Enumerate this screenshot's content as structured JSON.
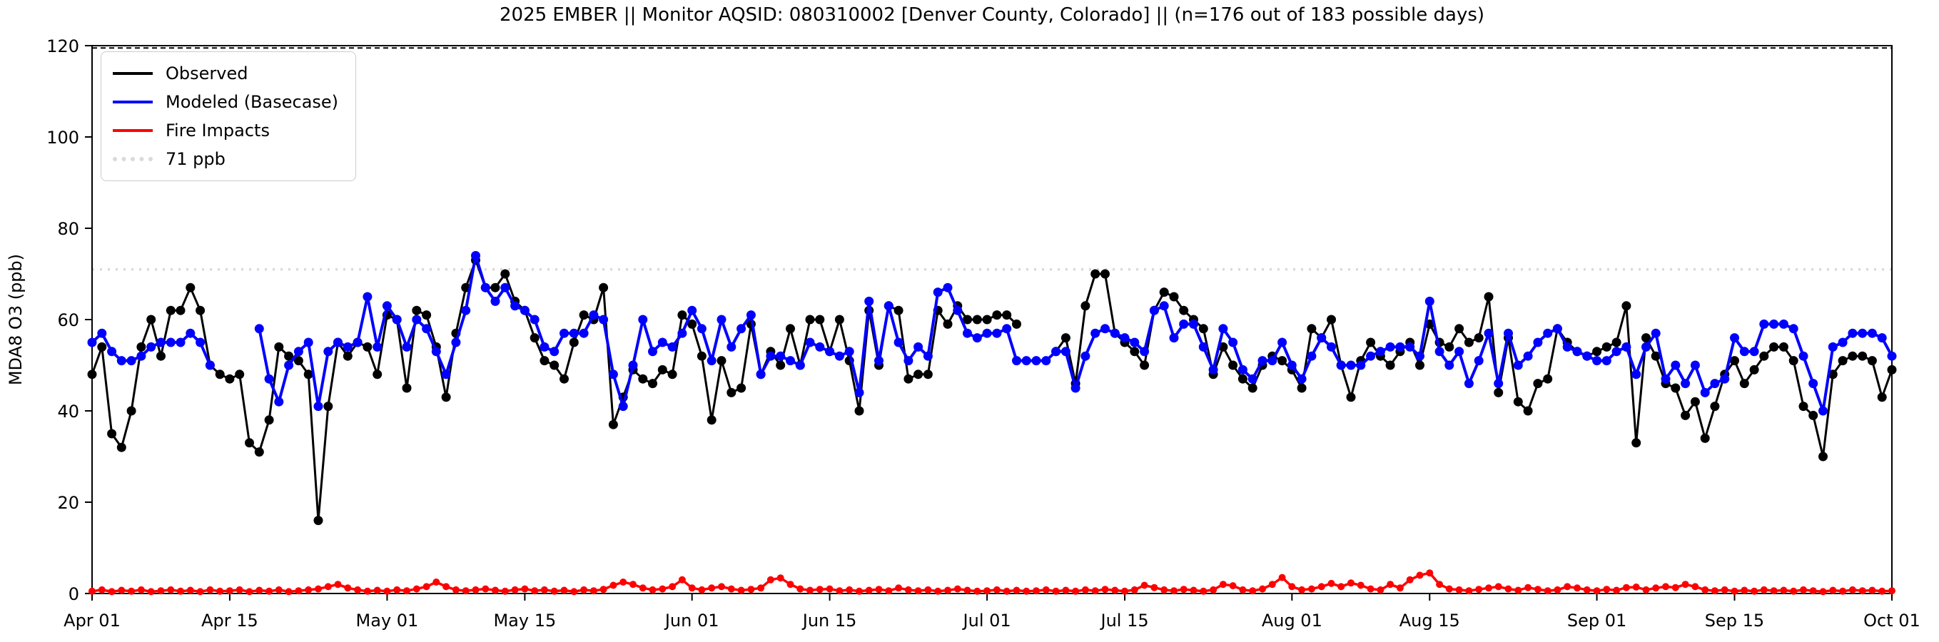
{
  "title": "2025 EMBER || Monitor AQSID: 080310002 [Denver County, Colorado] || (n=176 out of 183 possible days)",
  "legend": {
    "items": [
      {
        "label": "Observed",
        "color": "#000000",
        "style": "solid"
      },
      {
        "label": "Modeled (Basecase)",
        "color": "#0000ff",
        "style": "solid"
      },
      {
        "label": "Fire Impacts",
        "color": "#ff0000",
        "style": "solid"
      },
      {
        "label": "71 ppb",
        "color": "#d9d9d9",
        "style": "dotted"
      }
    ]
  },
  "chart_data": {
    "type": "line",
    "title": "2025 EMBER || Monitor AQSID: 080310002 [Denver County, Colorado] || (n=176 out of 183 possible days)",
    "ylabel": "MDA8 O3 (ppb)",
    "xlabel": "",
    "ylim": [
      0,
      120
    ],
    "yticks": [
      0,
      20,
      40,
      60,
      80,
      100,
      120
    ],
    "x_unit": "day index from Apr 01 (daily data)",
    "x_range_days": 183,
    "xticks": {
      "days": [
        0,
        14,
        30,
        44,
        61,
        75,
        91,
        105,
        122,
        136,
        153,
        167,
        183
      ],
      "labels": [
        "Apr 01",
        "Apr 15",
        "May 01",
        "May 15",
        "Jun 01",
        "Jun 15",
        "Jul 01",
        "Jul 15",
        "Aug 01",
        "Aug 15",
        "Sep 01",
        "Sep 15",
        "Oct 01"
      ]
    },
    "threshold_line": {
      "label": "71 ppb",
      "value": 71,
      "color": "#d9d9d9",
      "linestyle": "dotted"
    },
    "top_dashed_line": {
      "value": 119.5,
      "color": "#000000",
      "linestyle": "dashed"
    },
    "grid": false,
    "legend_position": "upper left",
    "series": [
      {
        "name": "Observed",
        "color": "#000000",
        "marker": "circle",
        "values": [
          48,
          54,
          35,
          32,
          40,
          54,
          60,
          52,
          62,
          62,
          67,
          62,
          50,
          48,
          47,
          48,
          33,
          31,
          38,
          54,
          52,
          51,
          48,
          16,
          41,
          55,
          52,
          55,
          54,
          48,
          61,
          60,
          45,
          62,
          61,
          54,
          43,
          57,
          67,
          73,
          67,
          67,
          70,
          64,
          62,
          56,
          51,
          50,
          47,
          55,
          61,
          60,
          67,
          37,
          43,
          49,
          47,
          46,
          49,
          48,
          61,
          59,
          52,
          38,
          51,
          44,
          45,
          59,
          48,
          53,
          50,
          58,
          50,
          60,
          60,
          53,
          60,
          51,
          40,
          62,
          50,
          63,
          62,
          47,
          48,
          48,
          62,
          59,
          63,
          60,
          60,
          60,
          61,
          61,
          59,
          null,
          null,
          null,
          53,
          56,
          46,
          63,
          70,
          70,
          57,
          55,
          53,
          50,
          62,
          66,
          65,
          62,
          60,
          58,
          48,
          54,
          50,
          47,
          45,
          50,
          52,
          51,
          49,
          45,
          58,
          56,
          60,
          50,
          43,
          51,
          55,
          52,
          50,
          53,
          55,
          50,
          59,
          55,
          54,
          58,
          55,
          56,
          65,
          44,
          56,
          42,
          40,
          46,
          47,
          58,
          55,
          53,
          52,
          53,
          54,
          55,
          63,
          33,
          56,
          52,
          46,
          45,
          39,
          42,
          34,
          41,
          48,
          51,
          46,
          49,
          52,
          54,
          54,
          51,
          41,
          39,
          30,
          48,
          51,
          52,
          52,
          51,
          43,
          49
        ]
      },
      {
        "name": "Modeled (Basecase)",
        "color": "#0000ff",
        "marker": "circle",
        "values": [
          55,
          57,
          53,
          51,
          51,
          52,
          54,
          55,
          55,
          55,
          57,
          55,
          50,
          null,
          null,
          null,
          null,
          58,
          47,
          42,
          50,
          53,
          55,
          41,
          53,
          55,
          54,
          55,
          65,
          54,
          63,
          60,
          54,
          60,
          58,
          53,
          48,
          55,
          62,
          74,
          67,
          64,
          67,
          63,
          62,
          60,
          54,
          53,
          57,
          57,
          57,
          61,
          60,
          48,
          41,
          50,
          60,
          53,
          55,
          54,
          57,
          62,
          58,
          51,
          60,
          54,
          58,
          61,
          48,
          52,
          52,
          51,
          50,
          55,
          54,
          53,
          52,
          53,
          44,
          64,
          51,
          63,
          55,
          51,
          54,
          52,
          66,
          67,
          62,
          57,
          56,
          57,
          57,
          58,
          51,
          51,
          51,
          51,
          53,
          53,
          45,
          52,
          57,
          58,
          57,
          56,
          55,
          53,
          62,
          63,
          56,
          59,
          59,
          54,
          49,
          58,
          55,
          49,
          47,
          51,
          51,
          55,
          50,
          47,
          52,
          56,
          54,
          50,
          50,
          50,
          52,
          53,
          54,
          54,
          54,
          52,
          64,
          53,
          50,
          53,
          46,
          51,
          57,
          46,
          57,
          50,
          52,
          55,
          57,
          58,
          54,
          53,
          52,
          51,
          51,
          53,
          54,
          48,
          54,
          57,
          47,
          50,
          46,
          50,
          44,
          46,
          47,
          56,
          53,
          53,
          59,
          59,
          59,
          58,
          52,
          46,
          40,
          54,
          55,
          57,
          57,
          57,
          56,
          52
        ]
      },
      {
        "name": "Fire Impacts",
        "color": "#ff0000",
        "marker": "circle",
        "values": [
          0.5,
          0.8,
          0.4,
          0.7,
          0.5,
          0.8,
          0.4,
          0.6,
          0.8,
          0.5,
          0.7,
          0.4,
          0.8,
          0.5,
          0.6,
          0.8,
          0.4,
          0.7,
          0.5,
          0.8,
          0.4,
          0.6,
          0.8,
          1.0,
          1.5,
          2.0,
          1.2,
          0.8,
          0.5,
          0.7,
          0.5,
          0.8,
          0.6,
          1.0,
          1.5,
          2.5,
          1.5,
          0.8,
          0.6,
          0.8,
          1.0,
          0.7,
          0.5,
          0.8,
          1.0,
          0.6,
          0.8,
          0.5,
          0.7,
          0.4,
          0.8,
          0.6,
          0.9,
          1.8,
          2.5,
          2.0,
          1.2,
          0.8,
          1.0,
          1.5,
          3.0,
          1.2,
          0.8,
          1.2,
          1.5,
          1.0,
          0.7,
          0.9,
          1.2,
          3.0,
          3.4,
          2.0,
          1.0,
          0.7,
          0.9,
          1.0,
          0.6,
          0.8,
          0.5,
          0.7,
          0.9,
          0.6,
          1.2,
          0.8,
          0.6,
          0.8,
          0.5,
          0.7,
          1.0,
          0.7,
          0.5,
          0.6,
          0.8,
          0.5,
          0.7,
          0.5,
          0.6,
          0.8,
          0.5,
          0.7,
          0.5,
          0.8,
          0.6,
          0.9,
          0.7,
          0.5,
          0.8,
          1.8,
          1.3,
          0.8,
          0.6,
          0.9,
          0.7,
          0.5,
          0.8,
          2.0,
          1.7,
          0.8,
          0.6,
          1.0,
          2.0,
          3.5,
          1.5,
          0.8,
          1.0,
          1.5,
          2.2,
          1.5,
          2.3,
          1.8,
          1.0,
          0.8,
          2.0,
          1.2,
          3.0,
          4.0,
          4.5,
          2.0,
          1.0,
          0.8,
          0.6,
          0.9,
          1.2,
          1.5,
          1.0,
          0.7,
          1.3,
          0.9,
          0.6,
          0.8,
          1.5,
          1.2,
          0.8,
          0.6,
          0.9,
          0.7,
          1.3,
          1.4,
          0.8,
          1.2,
          1.5,
          1.3,
          2.0,
          1.5,
          0.8,
          0.6,
          0.8,
          0.5,
          0.7,
          0.5,
          0.8,
          0.6,
          0.7,
          0.5,
          0.8,
          0.6,
          0.4,
          0.7,
          0.5,
          0.8,
          0.6,
          0.7,
          0.5,
          0.6
        ]
      }
    ]
  },
  "axis_style": {
    "spine_color": "#000000",
    "tick_label_size": 24,
    "title_size": 26
  }
}
